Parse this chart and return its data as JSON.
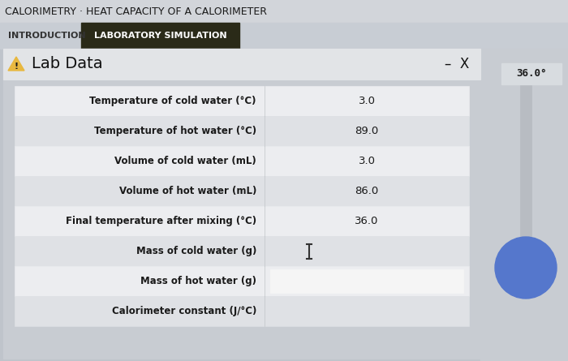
{
  "title_bar_text": "CALORIMETRY · HEAT CAPACITY OF A CALORIMETER",
  "tab1_text": "INTRODUCTION",
  "tab2_text": "LABORATORY SIMULATION",
  "panel_title": "Lab Data",
  "panel_minus_x": "–  X",
  "rows": [
    {
      "label": "Temperature of cold water (°C)",
      "value": "3.0",
      "has_input": false,
      "show_cursor": false
    },
    {
      "label": "Temperature of hot water (°C)",
      "value": "89.0",
      "has_input": false,
      "show_cursor": false
    },
    {
      "label": "Volume of cold water (mL)",
      "value": "3.0",
      "has_input": false,
      "show_cursor": false
    },
    {
      "label": "Volume of hot water (mL)",
      "value": "86.0",
      "has_input": false,
      "show_cursor": false
    },
    {
      "label": "Final temperature after mixing (°C)",
      "value": "36.0",
      "has_input": false,
      "show_cursor": false
    },
    {
      "label": "Mass of cold water (g)",
      "value": "",
      "has_input": false,
      "show_cursor": true
    },
    {
      "label": "Mass of hot water (g)",
      "value": "",
      "has_input": true,
      "show_cursor": false
    },
    {
      "label": "Calorimeter constant (J/°C)",
      "value": "",
      "has_input": false,
      "show_cursor": false
    }
  ],
  "bg_outer": "#bfc4cb",
  "title_bar_bg": "#d2d5da",
  "title_bar_fg": "#1a1a1a",
  "tab_bar_bg": "#c8cdd4",
  "tab1_fg": "#333333",
  "tab2_bg": "#2a2a18",
  "tab2_fg": "#ffffff",
  "panel_outer_bg": "#c8ccd2",
  "panel_header_bg": "#e2e4e7",
  "panel_header_fg": "#111111",
  "icon_bg": "#d4d4d4",
  "table_bg": "#d8dade",
  "row_even_bg": "#ecedf0",
  "row_odd_bg": "#dfe1e5",
  "row_label_fg": "#1a1a1a",
  "row_value_fg": "#1a1a1a",
  "divider_col_bg": "#c8ccd2",
  "input_bg": "#f5f5f5",
  "input_border": "#c04020",
  "thermo_bg": "#c8ccd2",
  "thermo_display_bg": "#d8dce0",
  "thermo_display_fg": "#1a1a1a",
  "thermo_display_text": "36.0°",
  "cursor_fg": "#333333"
}
